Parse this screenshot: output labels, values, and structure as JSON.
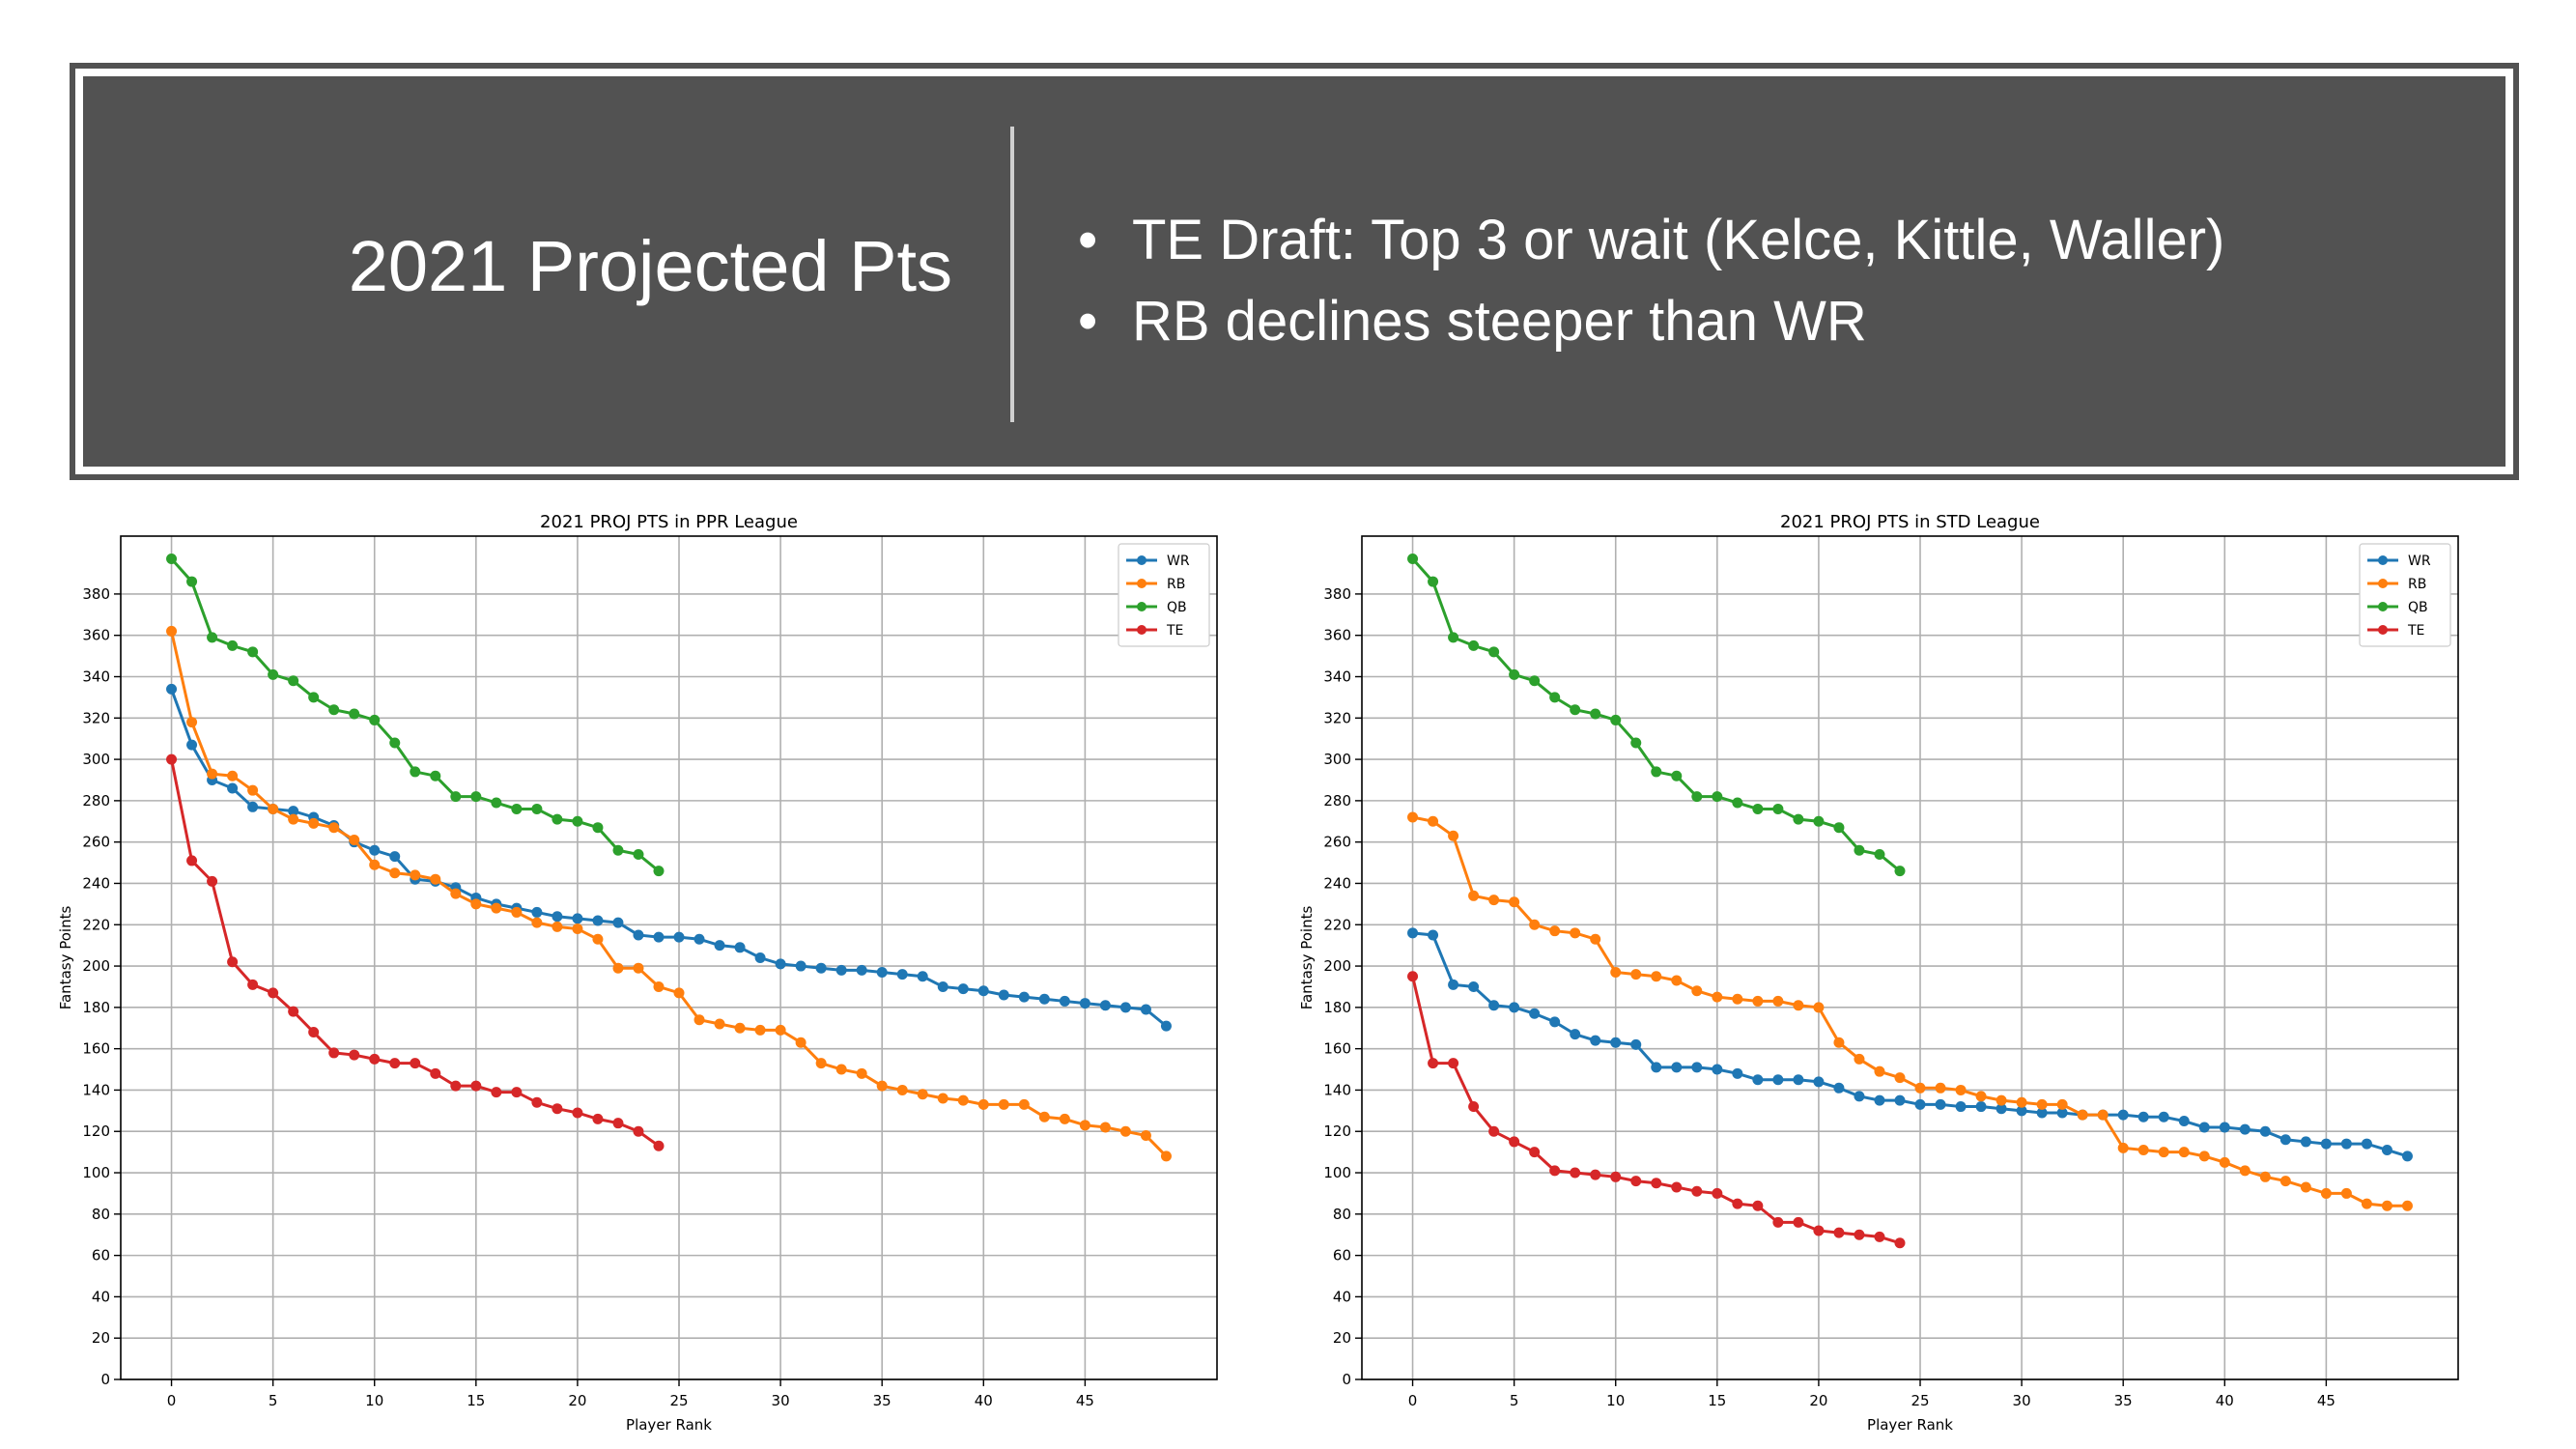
{
  "banner": {
    "title": "2021 Projected Pts",
    "bullets": [
      "TE Draft: Top 3 or wait (Kelce, Kittle, Waller)",
      "RB declines steeper than WR"
    ]
  },
  "colors": {
    "WR": "#1f77b4",
    "RB": "#ff7f0e",
    "QB": "#2ca02c",
    "TE": "#d62728",
    "banner_bg": "#525252"
  },
  "chart_data": [
    {
      "type": "line",
      "title": "2021 PROJ PTS in PPR League",
      "xlabel": "Player Rank",
      "ylabel": "Fantasy Points",
      "xlim": [
        -2.5,
        51.5
      ],
      "ylim": [
        0,
        408
      ],
      "xticks": [
        0,
        5,
        10,
        15,
        20,
        25,
        30,
        35,
        40,
        45
      ],
      "yticks": [
        0,
        20,
        40,
        60,
        80,
        100,
        120,
        140,
        160,
        180,
        200,
        220,
        240,
        260,
        280,
        300,
        320,
        340,
        360,
        380
      ],
      "grid": true,
      "legend_position": "top-right",
      "series": [
        {
          "name": "WR",
          "color": "#1f77b4",
          "values": [
            334,
            307,
            290,
            286,
            277,
            276,
            275,
            272,
            268,
            260,
            256,
            253,
            242,
            241,
            238,
            233,
            230,
            228,
            226,
            224,
            223,
            222,
            221,
            215,
            214,
            214,
            213,
            210,
            209,
            204,
            201,
            200,
            199,
            198,
            198,
            197,
            196,
            195,
            190,
            189,
            188,
            186,
            185,
            184,
            183,
            182,
            181,
            180,
            179,
            171
          ]
        },
        {
          "name": "RB",
          "color": "#ff7f0e",
          "values": [
            362,
            318,
            293,
            292,
            285,
            276,
            271,
            269,
            267,
            261,
            249,
            245,
            244,
            242,
            235,
            230,
            228,
            226,
            221,
            219,
            218,
            213,
            199,
            199,
            190,
            187,
            174,
            172,
            170,
            169,
            169,
            163,
            153,
            150,
            148,
            142,
            140,
            138,
            136,
            135,
            133,
            133,
            133,
            127,
            126,
            123,
            122,
            120,
            118,
            108
          ]
        },
        {
          "name": "QB",
          "color": "#2ca02c",
          "values": [
            397,
            386,
            359,
            355,
            352,
            341,
            338,
            330,
            324,
            322,
            319,
            308,
            294,
            292,
            282,
            282,
            279,
            276,
            276,
            271,
            270,
            267,
            256,
            254,
            246
          ]
        },
        {
          "name": "TE",
          "color": "#d62728",
          "values": [
            300,
            251,
            241,
            202,
            191,
            187,
            178,
            168,
            158,
            157,
            155,
            153,
            153,
            148,
            142,
            142,
            139,
            139,
            134,
            131,
            129,
            126,
            124,
            120,
            113
          ]
        }
      ]
    },
    {
      "type": "line",
      "title": "2021 PROJ PTS in STD League",
      "xlabel": "Player Rank",
      "ylabel": "Fantasy Points",
      "xlim": [
        -2.5,
        51.5
      ],
      "ylim": [
        0,
        408
      ],
      "xticks": [
        0,
        5,
        10,
        15,
        20,
        25,
        30,
        35,
        40,
        45
      ],
      "yticks": [
        0,
        20,
        40,
        60,
        80,
        100,
        120,
        140,
        160,
        180,
        200,
        220,
        240,
        260,
        280,
        300,
        320,
        340,
        360,
        380
      ],
      "grid": true,
      "legend_position": "top-right",
      "series": [
        {
          "name": "WR",
          "color": "#1f77b4",
          "values": [
            216,
            215,
            191,
            190,
            181,
            180,
            177,
            173,
            167,
            164,
            163,
            162,
            151,
            151,
            151,
            150,
            148,
            145,
            145,
            145,
            144,
            141,
            137,
            135,
            135,
            133,
            133,
            132,
            132,
            131,
            130,
            129,
            129,
            128,
            128,
            128,
            127,
            127,
            125,
            122,
            122,
            121,
            120,
            116,
            115,
            114,
            114,
            114,
            111,
            108
          ]
        },
        {
          "name": "RB",
          "color": "#ff7f0e",
          "values": [
            272,
            270,
            263,
            234,
            232,
            231,
            220,
            217,
            216,
            213,
            197,
            196,
            195,
            193,
            188,
            185,
            184,
            183,
            183,
            181,
            180,
            163,
            155,
            149,
            146,
            141,
            141,
            140,
            137,
            135,
            134,
            133,
            133,
            128,
            128,
            112,
            111,
            110,
            110,
            108,
            105,
            101,
            98,
            96,
            93,
            90,
            90,
            85,
            84,
            84
          ]
        },
        {
          "name": "QB",
          "color": "#2ca02c",
          "values": [
            397,
            386,
            359,
            355,
            352,
            341,
            338,
            330,
            324,
            322,
            319,
            308,
            294,
            292,
            282,
            282,
            279,
            276,
            276,
            271,
            270,
            267,
            256,
            254,
            246
          ]
        },
        {
          "name": "TE",
          "color": "#d62728",
          "values": [
            195,
            153,
            153,
            132,
            120,
            115,
            110,
            101,
            100,
            99,
            98,
            96,
            95,
            93,
            91,
            90,
            85,
            84,
            76,
            76,
            72,
            71,
            70,
            69,
            66
          ]
        }
      ]
    }
  ]
}
